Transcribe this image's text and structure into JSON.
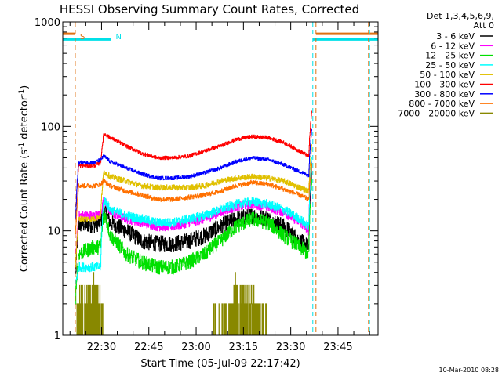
{
  "chart_data": {
    "type": "line",
    "title": "HESSI Observing Summary Count Rates, Corrected",
    "xlabel": "Start Time (05-Jul-09 22:17:42)",
    "ylabel_main": "Corrected Count Rate (s",
    "ylabel_sup1": "-1",
    "ylabel_mid": " detector",
    "ylabel_sup2": "-1",
    "ylabel_end": ")",
    "y_scale": "log",
    "ylim": [
      1,
      1000
    ],
    "y_ticks": [
      1,
      10,
      100,
      1000
    ],
    "y_tick_labels": [
      "1",
      "10",
      "100",
      "1000"
    ],
    "xlim": [
      "22:17:42",
      "23:57:42"
    ],
    "x_ticks": [
      "22:30",
      "22:45",
      "23:00",
      "23:15",
      "23:30",
      "23:45"
    ],
    "grid": false,
    "legend_position": "right",
    "legend_header": [
      "Det 1,3,4,5,6,9,",
      "Att 0"
    ],
    "footer": "10-Mar-2010 08:28",
    "annotations": [
      {
        "label": "S",
        "time": "22:21:40",
        "color": "#e07010"
      },
      {
        "label": "N",
        "time": "22:33:00",
        "color": "#00e0e8"
      }
    ],
    "event_lines": [
      {
        "time": "22:21:40",
        "color": "#e07010"
      },
      {
        "time": "22:33:00",
        "color": "#00e0e8"
      },
      {
        "time": "23:37:00",
        "color": "#00e0e8"
      },
      {
        "time": "23:38:00",
        "color": "#e07010"
      },
      {
        "time": "23:54:40",
        "color": "#e07010"
      },
      {
        "time": "23:55:00",
        "color": "#00e0e8"
      }
    ],
    "flag_bars": [
      {
        "color": "#e07010",
        "value": 770,
        "ranges": [
          [
            "22:17:42",
            "22:21:40"
          ],
          [
            "23:38:00",
            "23:57:42"
          ]
        ]
      },
      {
        "color": "#00e0e8",
        "value": 680,
        "ranges": [
          [
            "22:17:42",
            "22:33:00"
          ],
          [
            "23:37:00",
            "23:57:42"
          ]
        ]
      }
    ],
    "x_minutes": [
      0,
      4,
      5,
      10,
      12,
      13,
      15,
      20,
      25,
      30,
      35,
      40,
      45,
      50,
      55,
      60,
      65,
      70,
      75,
      78,
      79
    ],
    "series": [
      {
        "name": "3 - 6 keV",
        "color": "#000000",
        "noise": 0.18,
        "values": [
          null,
          3,
          11.5,
          11.5,
          12,
          16,
          12,
          10,
          8,
          7.5,
          7.5,
          8,
          9,
          11,
          13,
          14,
          13,
          11,
          8,
          7,
          40
        ]
      },
      {
        "name": "6 - 12 keV",
        "color": "#ff00ff",
        "noise": 0.1,
        "values": [
          null,
          4,
          14,
          14,
          14,
          20,
          15,
          13,
          12,
          11,
          11,
          12,
          13,
          15,
          17,
          18,
          17,
          15,
          12,
          10,
          50
        ]
      },
      {
        "name": "12 - 25 keV",
        "color": "#00e000",
        "noise": 0.16,
        "values": [
          null,
          2,
          6,
          7,
          7,
          15,
          9,
          6,
          5,
          4.5,
          4.5,
          5,
          6,
          8,
          11,
          13,
          12,
          9,
          7,
          6,
          30
        ]
      },
      {
        "name": "25 - 50 keV",
        "color": "#00ffff",
        "noise": 0.1,
        "values": [
          null,
          3,
          4.5,
          4.5,
          4.5,
          20,
          16,
          14,
          13,
          12,
          12,
          13,
          14,
          16,
          18,
          19,
          18,
          16,
          13,
          11,
          55
        ]
      },
      {
        "name": "50 - 100 keV",
        "color": "#e0c000",
        "noise": 0.06,
        "values": [
          null,
          4,
          13,
          13,
          14,
          37,
          33,
          30,
          27,
          26,
          26,
          26,
          27,
          30,
          32,
          33,
          32,
          30,
          26,
          24,
          70
        ]
      },
      {
        "name": "100 - 300 keV",
        "color": "#ff0000",
        "noise": 0.04,
        "values": [
          null,
          10,
          42,
          42,
          45,
          85,
          78,
          65,
          55,
          50,
          50,
          52,
          58,
          65,
          75,
          80,
          78,
          70,
          58,
          52,
          145
        ]
      },
      {
        "name": "300 - 800 keV",
        "color": "#0000ff",
        "noise": 0.04,
        "values": [
          null,
          10,
          45,
          45,
          48,
          52,
          46,
          40,
          35,
          32,
          32,
          33,
          36,
          40,
          46,
          50,
          48,
          43,
          37,
          34,
          100
        ]
      },
      {
        "name": "800 - 7000 keV",
        "color": "#ff7000",
        "noise": 0.05,
        "values": [
          null,
          8,
          27,
          27,
          28,
          30,
          27,
          24,
          22,
          20,
          20,
          21,
          22,
          24,
          27,
          29,
          28,
          25,
          22,
          20,
          45
        ]
      },
      {
        "name": "7000 - 20000 keV",
        "color": "#888800",
        "noise": 0.0,
        "values": [
          null,
          1,
          2,
          2.5,
          2,
          1,
          1,
          1,
          1,
          1,
          1,
          1,
          1,
          1.2,
          2.5,
          2,
          1,
          1,
          1,
          1,
          1
        ]
      }
    ]
  }
}
